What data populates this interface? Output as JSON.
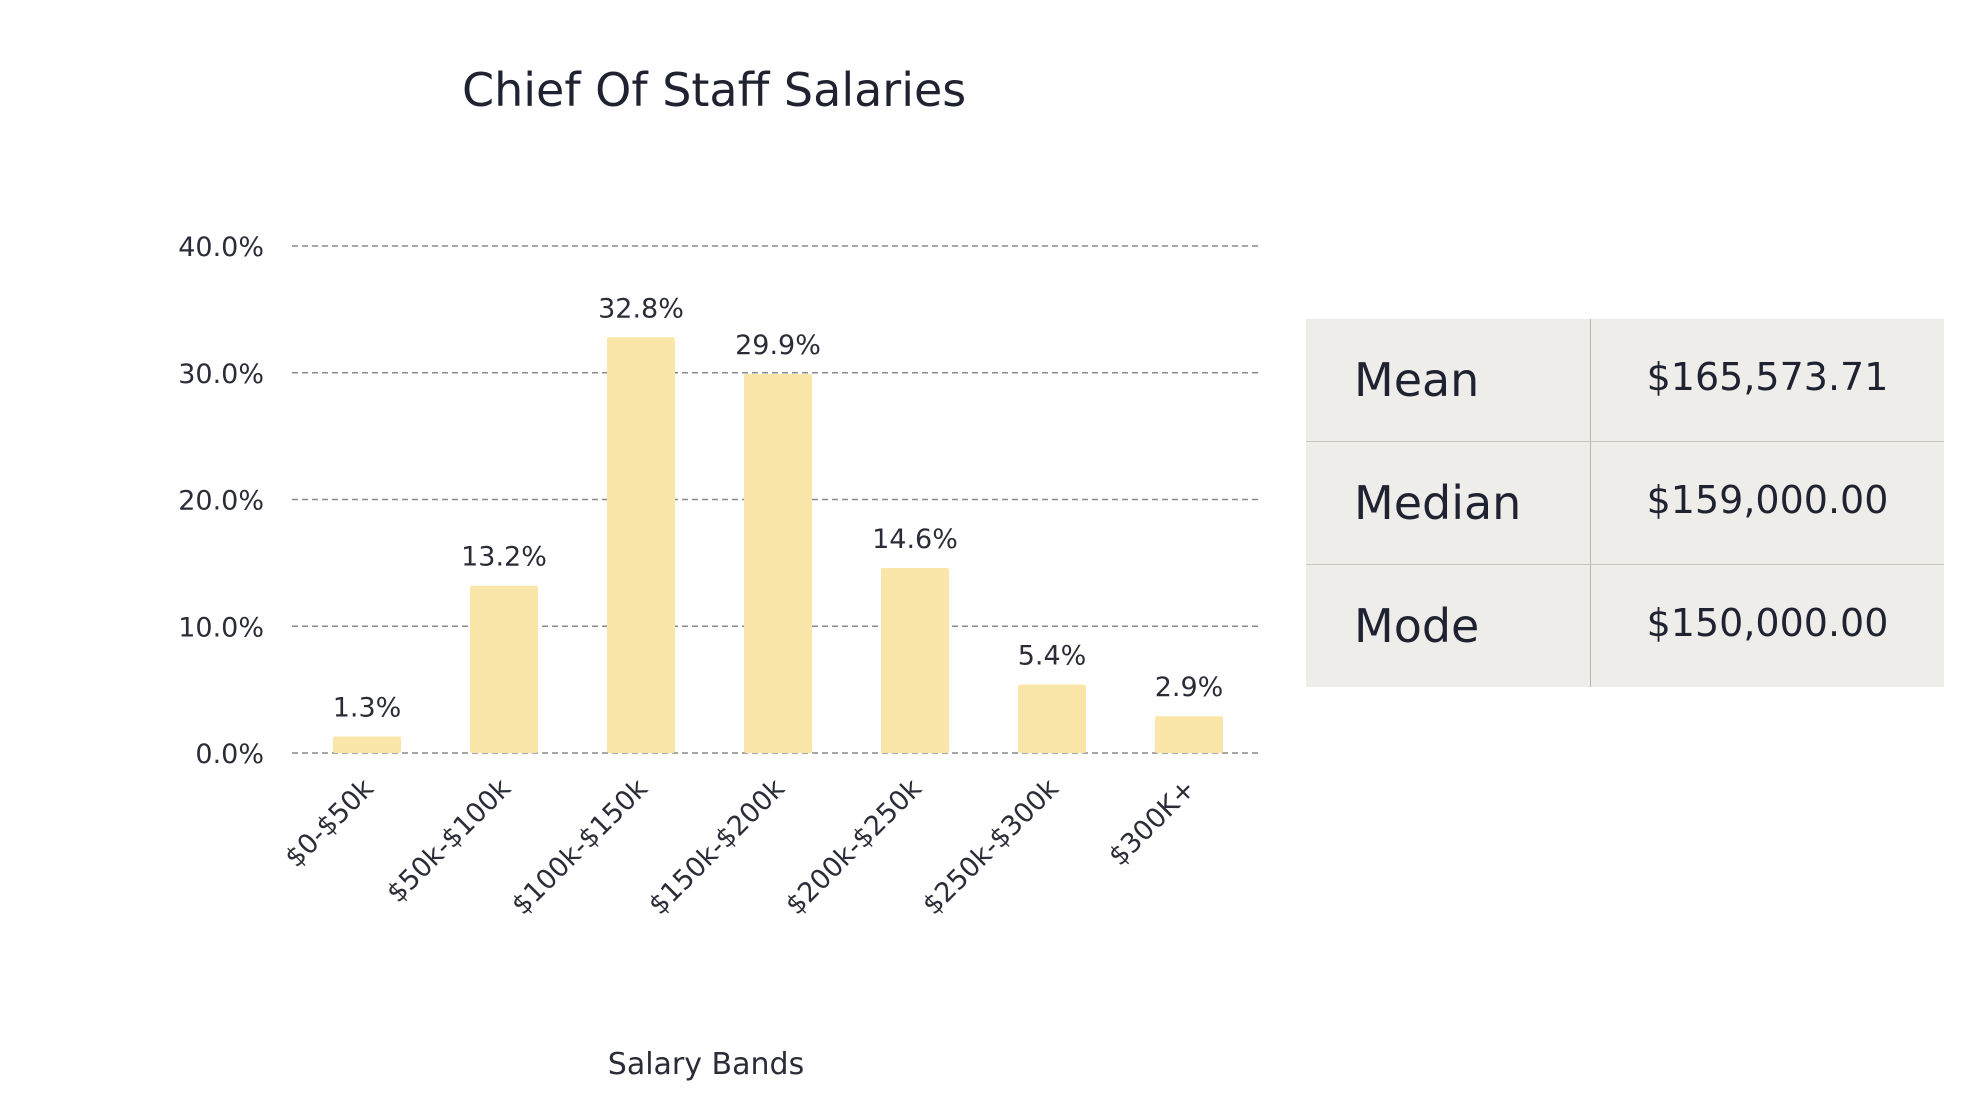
{
  "colors": {
    "bar": "#fae6a8",
    "table_bg": "#efede9",
    "text": "#1f2230",
    "grid": "#8a8a8a"
  },
  "chart_data": {
    "type": "bar",
    "title": "Chief Of Staff Salaries",
    "xlabel": "Salary Bands",
    "ylabel": "",
    "categories": [
      "$0-$50k",
      "$50k-$100k",
      "$100k-$150k",
      "$150k-$200k",
      "$200k-$250k",
      "$250k-$300k",
      "$300K+"
    ],
    "values": [
      1.3,
      13.2,
      32.8,
      29.9,
      14.6,
      5.4,
      2.9
    ],
    "value_labels": [
      "1.3%",
      "13.2%",
      "32.8%",
      "29.9%",
      "14.6%",
      "5.4%",
      "2.9%"
    ],
    "yticks": [
      0,
      10,
      20,
      30,
      40
    ],
    "ytick_labels": [
      "0.0%",
      "10.0%",
      "20.0%",
      "30.0%",
      "40.0%"
    ],
    "ylim": [
      0,
      40
    ],
    "grid": true,
    "grid_style": "dashed",
    "legend": "none",
    "xtick_rotation": -45
  },
  "stats": {
    "rows": [
      {
        "label": "Mean",
        "value": "$165,573.71"
      },
      {
        "label": "Median",
        "value": "$159,000.00"
      },
      {
        "label": "Mode",
        "value": "$150,000.00"
      }
    ]
  }
}
